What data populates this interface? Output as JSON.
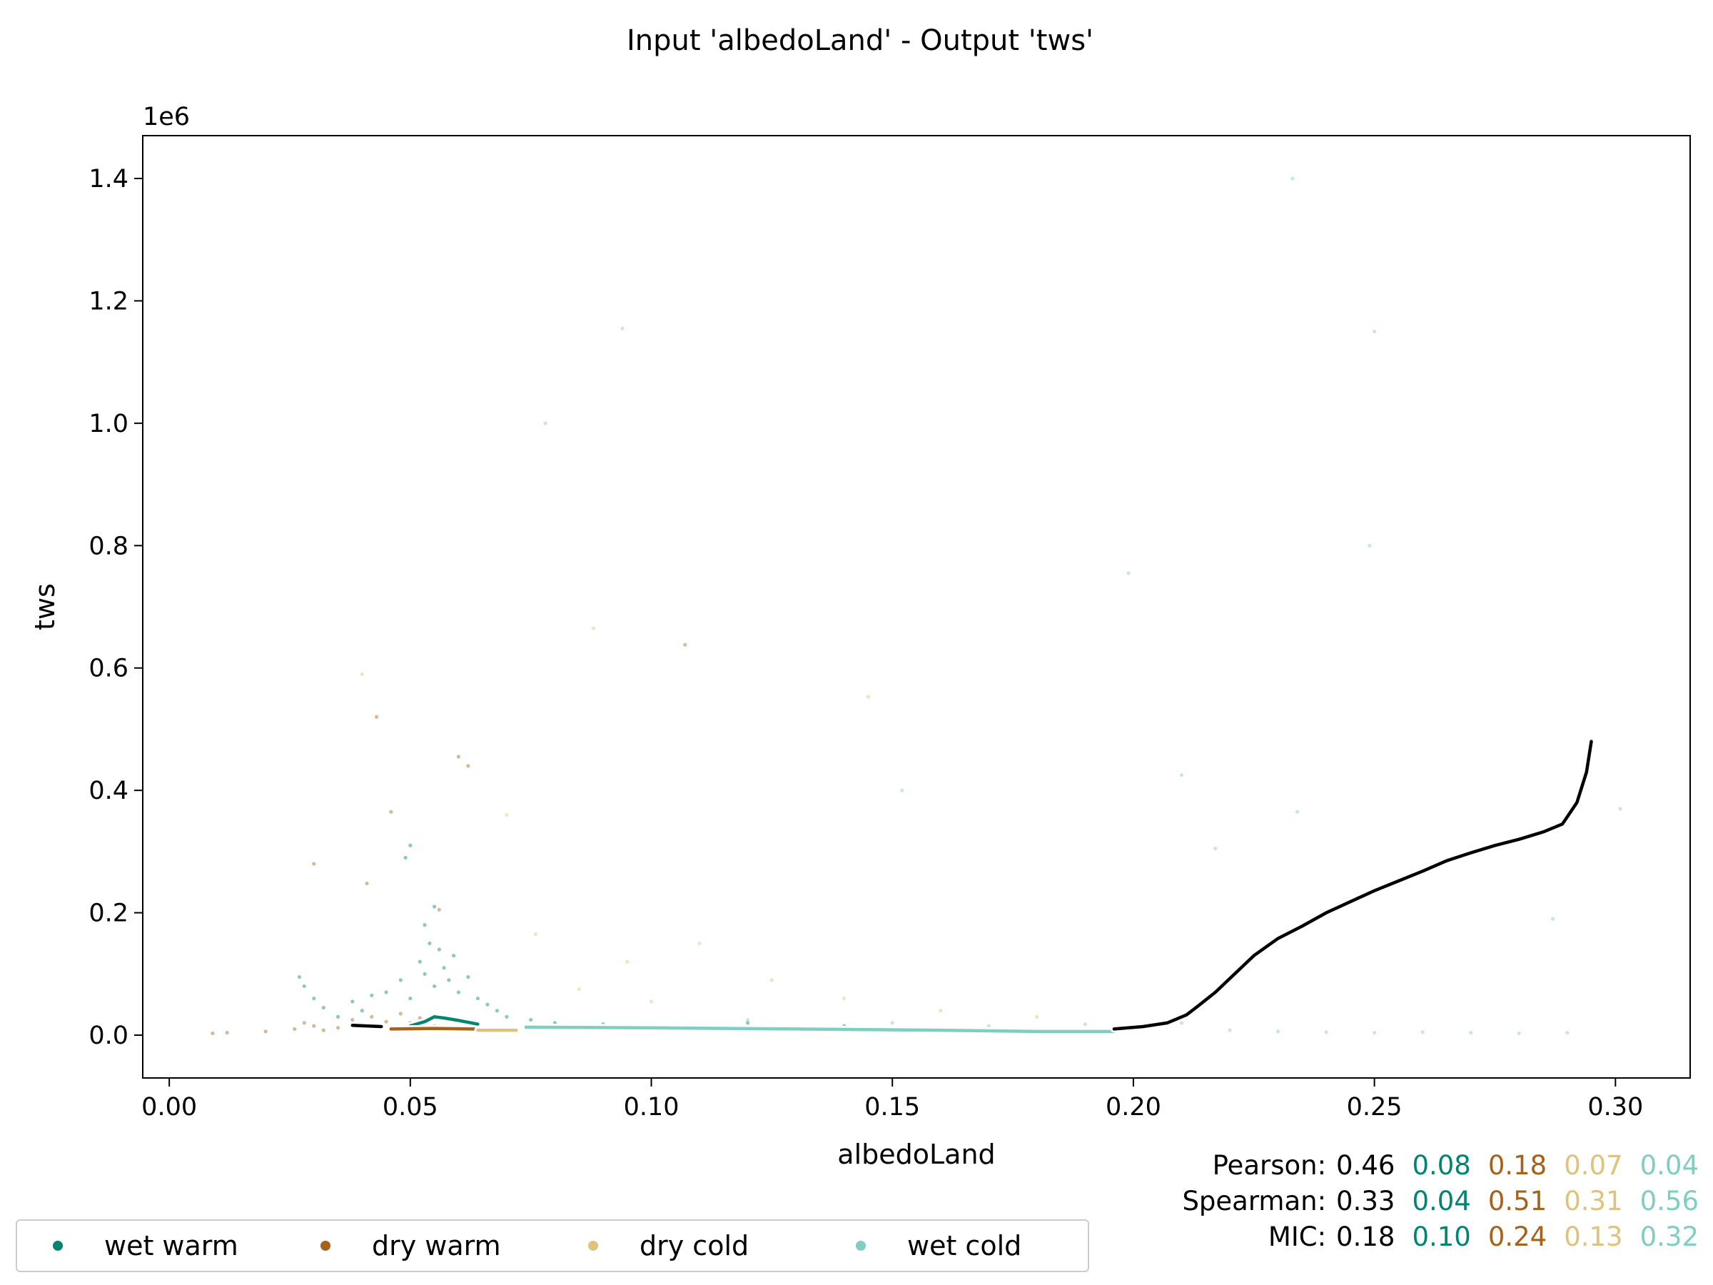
{
  "chart_data": {
    "type": "scatter",
    "title": "Input 'albedoLand' - Output 'tws'",
    "xlabel": "albedoLand",
    "ylabel": "tws",
    "y_offset_text": "1e6",
    "xlim": [
      -0.0055,
      0.3155
    ],
    "ylim": [
      -70000,
      1470000
    ],
    "xticks": [
      0.0,
      0.05,
      0.1,
      0.15,
      0.2,
      0.25,
      0.3
    ],
    "xtick_labels": [
      "0.00",
      "0.05",
      "0.10",
      "0.15",
      "0.20",
      "0.25",
      "0.30"
    ],
    "yticks": [
      0,
      200000,
      400000,
      600000,
      800000,
      1000000,
      1200000,
      1400000
    ],
    "ytick_labels": [
      "0.0",
      "0.2",
      "0.4",
      "0.6",
      "0.8",
      "1.0",
      "1.2",
      "1.4"
    ],
    "series": [
      {
        "name": "wet warm",
        "color": "#018571",
        "points": [
          [
            0.027,
            95000
          ],
          [
            0.028,
            80000
          ],
          [
            0.03,
            60000
          ],
          [
            0.032,
            45000
          ],
          [
            0.035,
            30000
          ],
          [
            0.038,
            55000
          ],
          [
            0.04,
            40000
          ],
          [
            0.042,
            65000
          ],
          [
            0.045,
            70000
          ],
          [
            0.048,
            90000
          ],
          [
            0.05,
            60000
          ],
          [
            0.052,
            120000
          ],
          [
            0.053,
            100000
          ],
          [
            0.054,
            150000
          ],
          [
            0.055,
            80000
          ],
          [
            0.056,
            140000
          ],
          [
            0.057,
            110000
          ],
          [
            0.058,
            90000
          ],
          [
            0.059,
            130000
          ],
          [
            0.06,
            70000
          ],
          [
            0.062,
            95000
          ],
          [
            0.064,
            60000
          ],
          [
            0.066,
            50000
          ],
          [
            0.068,
            40000
          ],
          [
            0.07,
            30000
          ],
          [
            0.075,
            25000
          ],
          [
            0.08,
            20000
          ],
          [
            0.09,
            18000
          ],
          [
            0.1,
            15000
          ],
          [
            0.05,
            310000
          ],
          [
            0.049,
            290000
          ],
          [
            0.055,
            210000
          ],
          [
            0.053,
            180000
          ],
          [
            0.12,
            20000
          ],
          [
            0.14,
            15000
          ]
        ],
        "trend": [
          [
            0.05,
            15000
          ],
          [
            0.053,
            22000
          ],
          [
            0.055,
            30000
          ],
          [
            0.057,
            28000
          ],
          [
            0.06,
            24000
          ],
          [
            0.064,
            18000
          ]
        ]
      },
      {
        "name": "dry warm",
        "color": "#a6611a",
        "points": [
          [
            0.009,
            3000
          ],
          [
            0.012,
            4000
          ],
          [
            0.02,
            6000
          ],
          [
            0.026,
            10000
          ],
          [
            0.028,
            20000
          ],
          [
            0.03,
            15000
          ],
          [
            0.032,
            8000
          ],
          [
            0.035,
            12000
          ],
          [
            0.038,
            25000
          ],
          [
            0.04,
            18000
          ],
          [
            0.042,
            30000
          ],
          [
            0.045,
            22000
          ],
          [
            0.048,
            35000
          ],
          [
            0.05,
            20000
          ],
          [
            0.052,
            28000
          ],
          [
            0.055,
            15000
          ],
          [
            0.058,
            30000
          ],
          [
            0.06,
            25000
          ],
          [
            0.062,
            440000
          ],
          [
            0.06,
            455000
          ],
          [
            0.046,
            365000
          ],
          [
            0.043,
            520000
          ],
          [
            0.107,
            638000
          ],
          [
            0.03,
            280000
          ],
          [
            0.041,
            248000
          ],
          [
            0.056,
            205000
          ]
        ],
        "trend": [
          [
            0.046,
            10000
          ],
          [
            0.055,
            11000
          ],
          [
            0.063,
            10000
          ],
          [
            0.071,
            6000
          ]
        ]
      },
      {
        "name": "dry cold",
        "color": "#dfc27d",
        "points": [
          [
            0.04,
            590000
          ],
          [
            0.088,
            665000
          ],
          [
            0.145,
            553000
          ],
          [
            0.07,
            360000
          ],
          [
            0.076,
            165000
          ],
          [
            0.095,
            120000
          ],
          [
            0.11,
            150000
          ],
          [
            0.125,
            90000
          ],
          [
            0.14,
            60000
          ],
          [
            0.16,
            40000
          ],
          [
            0.18,
            30000
          ],
          [
            0.085,
            75000
          ],
          [
            0.1,
            55000
          ]
        ],
        "trend": [
          [
            0.064,
            8000
          ],
          [
            0.072,
            8000
          ]
        ]
      },
      {
        "name": "wet cold",
        "color": "#80cdc1",
        "points": [
          [
            0.078,
            1000000
          ],
          [
            0.094,
            1155000
          ],
          [
            0.233,
            1400000
          ],
          [
            0.25,
            1150000
          ],
          [
            0.249,
            800000
          ],
          [
            0.199,
            755000
          ],
          [
            0.301,
            370000
          ],
          [
            0.21,
            425000
          ],
          [
            0.152,
            400000
          ],
          [
            0.234,
            365000
          ],
          [
            0.217,
            305000
          ],
          [
            0.287,
            190000
          ],
          [
            0.21,
            20000
          ],
          [
            0.22,
            8000
          ],
          [
            0.23,
            6000
          ],
          [
            0.24,
            5000
          ],
          [
            0.25,
            4000
          ],
          [
            0.26,
            5000
          ],
          [
            0.27,
            4000
          ],
          [
            0.28,
            3000
          ],
          [
            0.29,
            4000
          ],
          [
            0.15,
            20000
          ],
          [
            0.17,
            15000
          ],
          [
            0.19,
            18000
          ],
          [
            0.12,
            25000
          ]
        ],
        "trend": [
          [
            0.074,
            13000
          ],
          [
            0.1,
            12000
          ],
          [
            0.13,
            10000
          ],
          [
            0.16,
            8000
          ],
          [
            0.18,
            6000
          ],
          [
            0.196,
            6000
          ]
        ]
      }
    ],
    "overall_trend": {
      "color": "#000000",
      "segments": [
        [
          [
            0.038,
            16000
          ],
          [
            0.044,
            14000
          ]
        ],
        [
          [
            0.196,
            10000
          ],
          [
            0.202,
            14000
          ],
          [
            0.207,
            20000
          ],
          [
            0.211,
            33000
          ],
          [
            0.213,
            45000
          ],
          [
            0.217,
            70000
          ],
          [
            0.221,
            100000
          ],
          [
            0.225,
            130000
          ],
          [
            0.23,
            158000
          ],
          [
            0.235,
            178000
          ],
          [
            0.24,
            200000
          ],
          [
            0.245,
            218000
          ],
          [
            0.25,
            236000
          ],
          [
            0.255,
            252000
          ],
          [
            0.26,
            268000
          ],
          [
            0.265,
            285000
          ],
          [
            0.27,
            298000
          ],
          [
            0.275,
            310000
          ],
          [
            0.28,
            320000
          ],
          [
            0.285,
            332000
          ],
          [
            0.289,
            345000
          ],
          [
            0.292,
            380000
          ],
          [
            0.294,
            430000
          ],
          [
            0.295,
            480000
          ]
        ]
      ]
    },
    "legend": {
      "placement": "bottom-left",
      "entries": [
        "wet warm",
        "dry warm",
        "dry cold",
        "wet cold"
      ]
    },
    "grid": false
  },
  "stats": {
    "pearson_label": "Pearson:",
    "pearson": [
      "0.46",
      "0.08",
      "0.18",
      "0.07",
      "0.04"
    ],
    "spearman_label": "Spearman:",
    "spearman": [
      "0.33",
      "0.04",
      "0.51",
      "0.31",
      "0.56"
    ],
    "mic_label": "MIC:",
    "mic": [
      "0.18",
      "0.10",
      "0.24",
      "0.13",
      "0.32"
    ]
  },
  "colors": {
    "all": "#000000",
    "wet_warm": "#018571",
    "dry_warm": "#a6611a",
    "dry_cold": "#dfc27d",
    "wet_cold": "#80cdc1"
  }
}
